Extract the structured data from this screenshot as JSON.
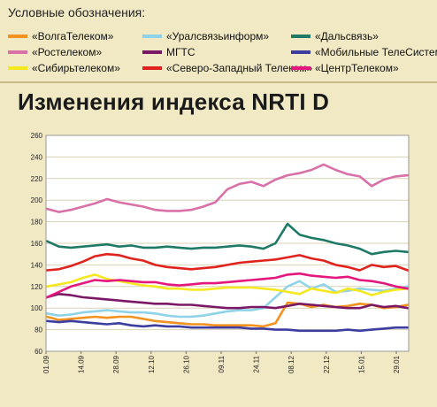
{
  "legend_title": "Условные обозначения:",
  "chart_title": "Изменения индекса NRTI D",
  "colors": {
    "background": "#f1e9c4",
    "plot": "#ffffff",
    "grid": "#d9d2b6"
  },
  "chart_data": {
    "type": "line",
    "title": "Изменения индекса NRTI D",
    "ylim": [
      60,
      260
    ],
    "yticks": [
      60,
      80,
      100,
      120,
      140,
      160,
      180,
      200,
      220,
      240,
      260
    ],
    "xticks": [
      "01.09",
      "14.09",
      "28.09",
      "12.10",
      "26.10",
      "09.11",
      "24.11",
      "08.12",
      "22.12",
      "15.01",
      "29.01"
    ],
    "grid": "horizontal",
    "series": [
      {
        "name": "«ВолгаТелеком»",
        "color": "#f3921f",
        "values": [
          92,
          89,
          90,
          91,
          92,
          91,
          92,
          92,
          90,
          88,
          87,
          86,
          85,
          85,
          84,
          84,
          84,
          84,
          83,
          86,
          105,
          104,
          101,
          103,
          101,
          102,
          104,
          103,
          100,
          101,
          103
        ]
      },
      {
        "name": "«Уралсвязьинформ»",
        "color": "#8ed3e8",
        "values": [
          95,
          93,
          94,
          96,
          97,
          98,
          97,
          96,
          96,
          95,
          93,
          92,
          92,
          93,
          95,
          97,
          98,
          98,
          100,
          110,
          120,
          125,
          118,
          122,
          115,
          116,
          118,
          117,
          116,
          118,
          120
        ]
      },
      {
        "name": "«Дальсвязь»",
        "color": "#1e7a66",
        "values": [
          162,
          157,
          156,
          157,
          158,
          159,
          157,
          158,
          156,
          156,
          157,
          156,
          155,
          156,
          156,
          157,
          158,
          157,
          155,
          160,
          178,
          168,
          165,
          163,
          160,
          158,
          155,
          150,
          152,
          153,
          152
        ]
      },
      {
        "name": "«Ростелеком»",
        "color": "#d970a8",
        "values": [
          192,
          189,
          191,
          194,
          197,
          201,
          198,
          196,
          194,
          191,
          190,
          190,
          191,
          194,
          198,
          210,
          215,
          217,
          213,
          219,
          223,
          225,
          228,
          233,
          228,
          224,
          222,
          213,
          219,
          222,
          223
        ]
      },
      {
        "name": "МГТС",
        "color": "#7b1866",
        "values": [
          110,
          113,
          112,
          110,
          109,
          108,
          107,
          106,
          105,
          104,
          104,
          103,
          103,
          102,
          101,
          100,
          100,
          101,
          101,
          100,
          102,
          104,
          103,
          102,
          101,
          100,
          100,
          103,
          101,
          102,
          100
        ]
      },
      {
        "name": "«Мобильные ТелеСистемы»",
        "color": "#3d3ea0",
        "values": [
          88,
          87,
          88,
          87,
          86,
          85,
          86,
          84,
          83,
          84,
          83,
          83,
          82,
          82,
          82,
          82,
          82,
          81,
          81,
          80,
          80,
          79,
          79,
          79,
          79,
          80,
          79,
          80,
          81,
          82,
          82
        ]
      },
      {
        "name": "«Сибирьтелеком»",
        "color": "#f6e81f",
        "values": [
          120,
          122,
          124,
          128,
          131,
          127,
          125,
          123,
          121,
          120,
          118,
          118,
          117,
          117,
          118,
          119,
          119,
          119,
          118,
          117,
          115,
          113,
          118,
          116,
          114,
          118,
          116,
          112,
          115,
          117,
          118
        ]
      },
      {
        "name": "«Северо-Западный Телеком»",
        "color": "#e0231d",
        "values": [
          135,
          136,
          139,
          143,
          148,
          150,
          149,
          146,
          144,
          140,
          138,
          137,
          136,
          137,
          138,
          140,
          142,
          143,
          144,
          145,
          147,
          149,
          146,
          144,
          140,
          138,
          135,
          140,
          138,
          139,
          135
        ]
      },
      {
        "name": "«ЦентрТелеком»",
        "color": "#e5177f",
        "values": [
          110,
          115,
          120,
          123,
          126,
          125,
          126,
          125,
          124,
          124,
          122,
          121,
          122,
          123,
          123,
          124,
          125,
          126,
          127,
          128,
          131,
          132,
          130,
          129,
          128,
          129,
          126,
          125,
          123,
          120,
          118
        ]
      }
    ]
  }
}
